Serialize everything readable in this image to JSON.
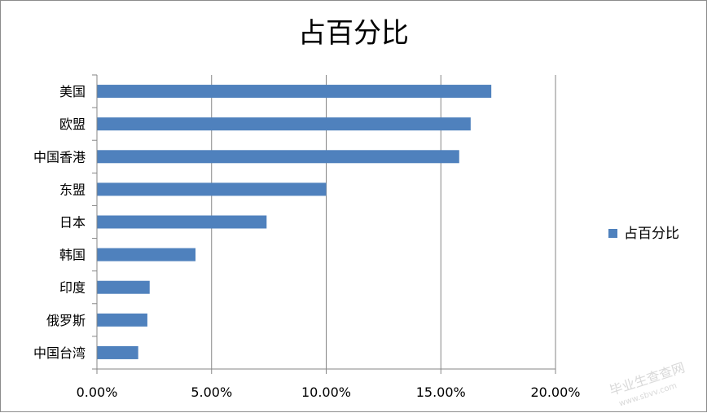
{
  "chart_data": {
    "type": "bar",
    "orientation": "horizontal",
    "title": "占百分比",
    "categories": [
      "美国",
      "欧盟",
      "中国香港",
      "东盟",
      "日本",
      "韩国",
      "印度",
      "俄罗斯",
      "中国台湾"
    ],
    "series": [
      {
        "name": "占百分比",
        "values": [
          0.172,
          0.163,
          0.158,
          0.1,
          0.074,
          0.043,
          0.023,
          0.022,
          0.018
        ],
        "color": "#4f81bd"
      }
    ],
    "xlim": [
      0,
      0.2
    ],
    "xticks": [
      0,
      0.05,
      0.1,
      0.15,
      0.2
    ],
    "xtick_labels": [
      "0.00%",
      "5.00%",
      "10.00%",
      "15.00%",
      "20.00%"
    ],
    "grid": "vertical",
    "legend_position": "right"
  },
  "watermark": {
    "line1": "毕业生查查网",
    "line2": "www.sbvv.com"
  }
}
